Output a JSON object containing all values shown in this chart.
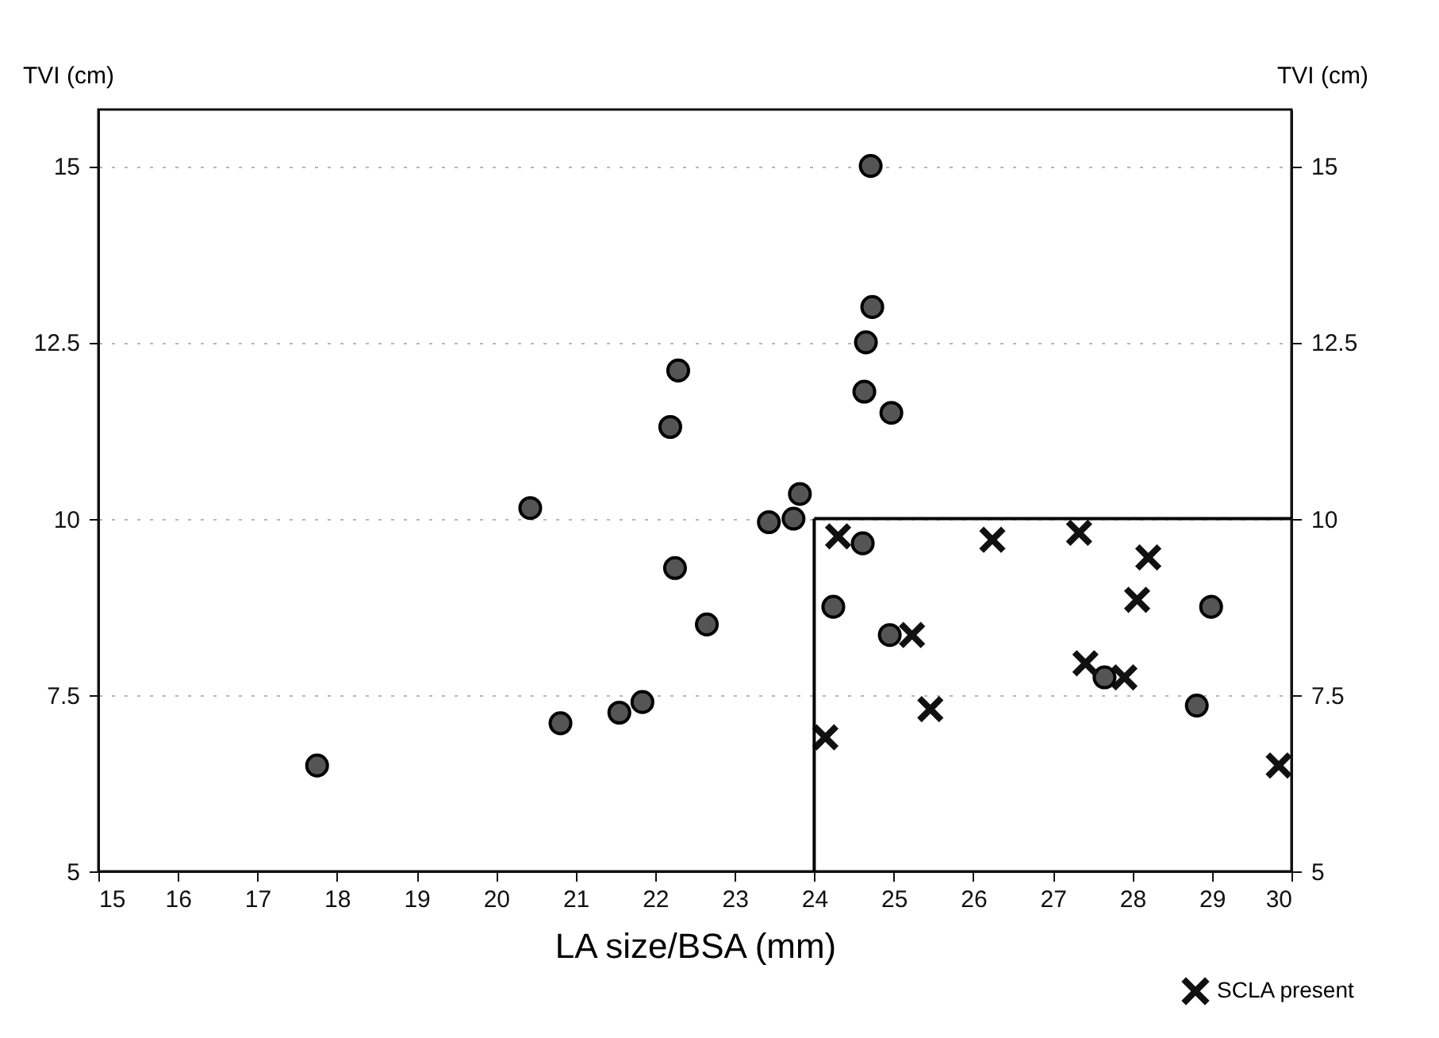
{
  "chart_data": {
    "type": "scatter",
    "xlabel": "LA size/BSA (mm)",
    "ylabel": "TVI (cm)",
    "y2label": "TVI (cm)",
    "xlim": [
      15,
      30
    ],
    "xticks": [
      15,
      16,
      17,
      18,
      19,
      20,
      21,
      22,
      23,
      24,
      25,
      26,
      27,
      28,
      29,
      30
    ],
    "ylim": [
      5,
      15.8
    ],
    "yticks": [
      5,
      7.5,
      10,
      12.5,
      15
    ],
    "y2lim": [
      5,
      15.8
    ],
    "y2ticks": [
      5,
      7.5,
      10,
      12.5,
      15
    ],
    "grid": "y",
    "legend": "bottom right",
    "ref_lines": [
      {
        "axis": "x",
        "value": 24,
        "color": "#000000"
      },
      {
        "axis": "y",
        "value": 10,
        "color": "#000000"
      }
    ],
    "series": [
      {
        "marker": "circle",
        "color": "#555555",
        "x": [
          24.71,
          24.73,
          24.65,
          22.29,
          22.19,
          24.63,
          24.97,
          23.82,
          23.74,
          23.43,
          24.61,
          22.25,
          24.24,
          24.95,
          28.99,
          27.65,
          28.81,
          20.43,
          22.65,
          21.84,
          21.55,
          20.81,
          17.75
        ],
        "values": [
          15.0,
          13.0,
          12.5,
          12.1,
          11.3,
          11.8,
          11.5,
          10.35,
          10.0,
          9.95,
          9.65,
          9.3,
          8.75,
          8.35,
          8.75,
          7.75,
          7.35,
          10.15,
          8.5,
          7.4,
          7.25,
          7.1,
          6.5
        ]
      },
      {
        "name": "SCLA present",
        "marker": "cross",
        "color": "#111111",
        "x": [
          24.3,
          26.24,
          27.33,
          28.2,
          25.23,
          28.06,
          27.41,
          27.9,
          25.46,
          24.14,
          29.84
        ],
        "values": [
          9.75,
          9.7,
          9.8,
          9.45,
          8.35,
          8.85,
          7.95,
          7.75,
          7.3,
          6.9,
          6.5
        ]
      }
    ]
  }
}
